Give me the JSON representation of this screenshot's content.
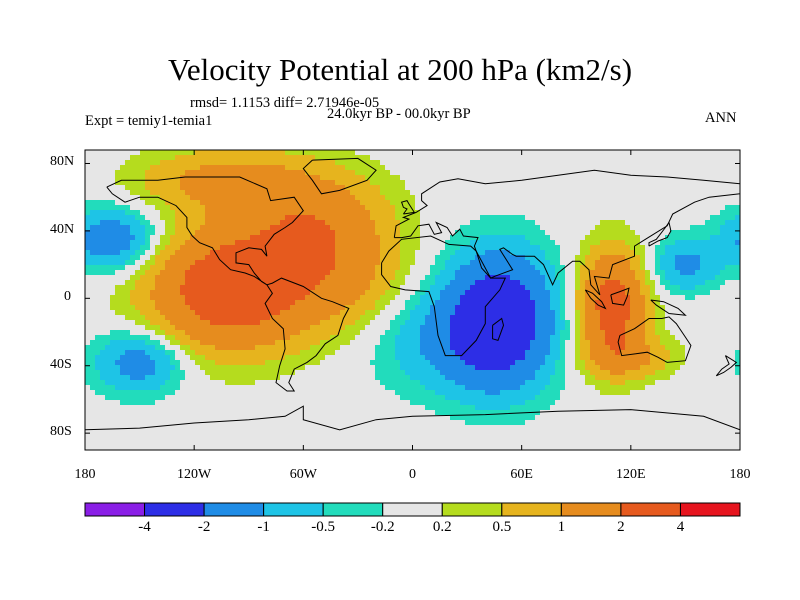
{
  "title": "Velocity Potential at 200 hPa (km2/s)",
  "stats": "rmsd= 1.1153 diff= 2.71946e-05",
  "left_label": "Expt = temiy1-temia1",
  "center_label": "24.0kyr BP - 00.0kyr BP",
  "right_label": "ANN",
  "lat_ticks": [
    "80N",
    "40N",
    "0",
    "40S",
    "80S"
  ],
  "lon_ticks": [
    "180",
    "120W",
    "60W",
    "0",
    "60E",
    "120E",
    "180"
  ],
  "colorbar": {
    "colors": [
      "#8a1ee6",
      "#2d2ee6",
      "#1f8ce6",
      "#1ec4e6",
      "#22dcbc",
      "#e6e6e6",
      "#b5dc1e",
      "#e6b41e",
      "#e68c1e",
      "#e65a1e",
      "#e6141e"
    ],
    "labels": [
      "-4",
      "-2",
      "-1",
      "-0.5",
      "-0.2",
      "0.2",
      "0.5",
      "1",
      "2",
      "4"
    ]
  },
  "anomalies": [
    {
      "lon": -100,
      "lat": 5,
      "amp": 3.0,
      "rx": 42,
      "ry": 34
    },
    {
      "lon": -55,
      "lat": 45,
      "amp": 1.6,
      "rx": 40,
      "ry": 30
    },
    {
      "lon": -105,
      "lat": 70,
      "amp": 1.2,
      "rx": 45,
      "ry": 18
    },
    {
      "lon": -40,
      "lat": 10,
      "amp": 1.0,
      "rx": 35,
      "ry": 30
    },
    {
      "lon": 48,
      "lat": -12,
      "amp": -3.0,
      "rx": 28,
      "ry": 38
    },
    {
      "lon": 20,
      "lat": -25,
      "amp": -1.0,
      "rx": 40,
      "ry": 30
    },
    {
      "lon": -165,
      "lat": 35,
      "amp": -1.6,
      "rx": 24,
      "ry": 18
    },
    {
      "lon": -150,
      "lat": -38,
      "amp": -1.4,
      "rx": 24,
      "ry": 18
    },
    {
      "lon": 150,
      "lat": 20,
      "amp": -1.2,
      "rx": 18,
      "ry": 15
    },
    {
      "lon": 110,
      "lat": -5,
      "amp": 2.6,
      "rx": 18,
      "ry": 32
    },
    {
      "lon": 120,
      "lat": -35,
      "amp": 0.9,
      "rx": 25,
      "ry": 12
    }
  ]
}
